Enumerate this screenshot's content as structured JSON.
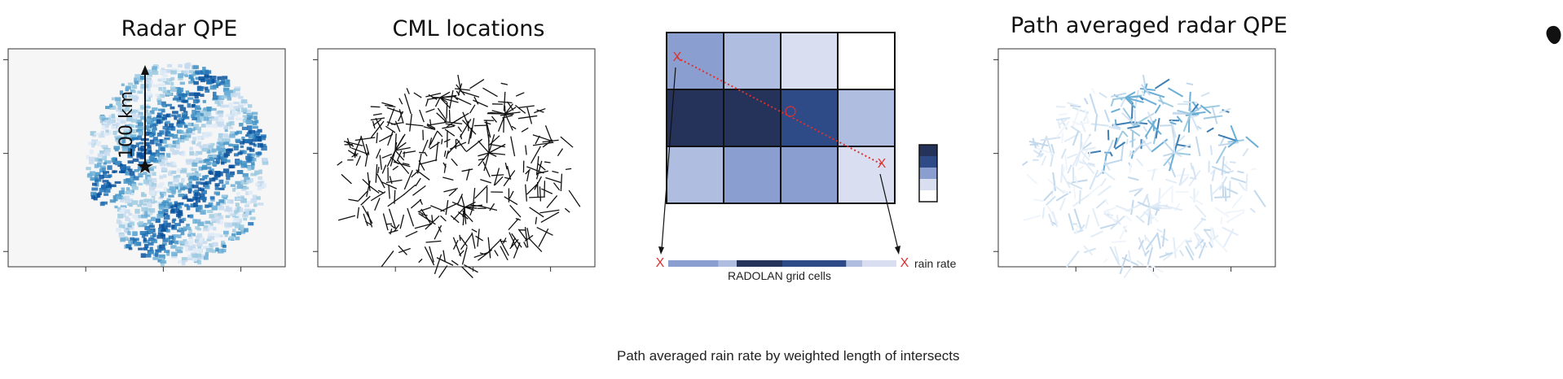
{
  "panels": [
    {
      "title": "Radar QPE",
      "scale_label": "100 km"
    },
    {
      "title": "CML locations"
    },
    {
      "grid_label": "RADOLAN grid cells",
      "legend_label": "rain rate",
      "marker": "X"
    },
    {
      "title": "Path averaged radar QPE"
    }
  ],
  "caption": "Path averaged rain rate by weighted length of intersects",
  "colors": {
    "dark_navy": "#25325a",
    "navy": "#2f4b87",
    "mid_blue": "#8a9fcf",
    "light_blue": "#aebde0",
    "pale_blue": "#d9dff0",
    "white": "#ffffff",
    "marker_red": "#e03030"
  },
  "grid_cells": [
    [
      "mid_blue",
      "light_blue",
      "pale_blue",
      "white"
    ],
    [
      "dark_navy",
      "dark_navy",
      "navy",
      "light_blue"
    ],
    [
      "light_blue",
      "mid_blue",
      "mid_blue",
      "pale_blue"
    ]
  ],
  "legend_colors": [
    "dark_navy",
    "navy",
    "mid_blue",
    "pale_blue",
    "white"
  ],
  "path_bar_segments": [
    {
      "color": "mid_blue",
      "weight": 22
    },
    {
      "color": "light_blue",
      "weight": 8
    },
    {
      "color": "dark_navy",
      "weight": 20
    },
    {
      "color": "navy",
      "weight": 28
    },
    {
      "color": "light_blue",
      "weight": 7
    },
    {
      "color": "pale_blue",
      "weight": 15
    }
  ]
}
